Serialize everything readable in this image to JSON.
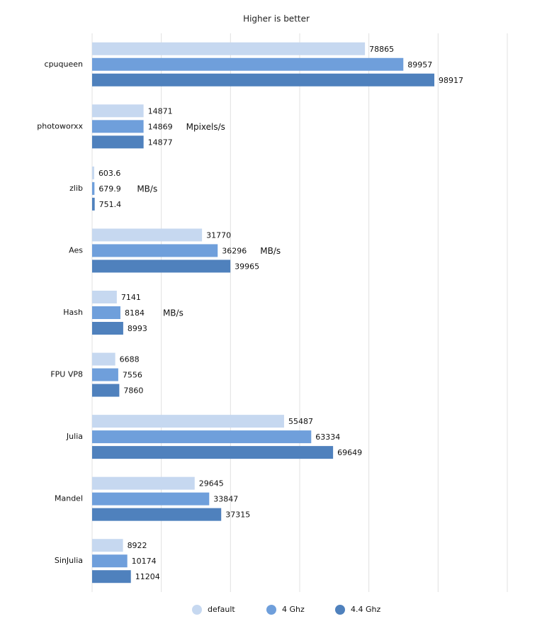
{
  "chart_data": {
    "type": "hbar",
    "title": "Higher is better",
    "categories": [
      "cpuqueen",
      "photoworxx",
      "zlib",
      "Aes",
      "Hash",
      "FPU VP8",
      "Julia",
      "Mandel",
      "SinJulia"
    ],
    "series": [
      {
        "name": "default",
        "color": "#c6d8f0",
        "values": [
          78865,
          14871,
          603.6,
          31770,
          7141,
          6688,
          55487,
          29645,
          8922
        ]
      },
      {
        "name": "4 Ghz",
        "color": "#6f9fdb",
        "values": [
          89957,
          14869,
          679.9,
          36296,
          8184,
          7556,
          63334,
          33847,
          10174
        ]
      },
      {
        "name": "4.4 Ghz",
        "color": "#4f81bd",
        "values": [
          98917,
          14877,
          751.4,
          39965,
          8993,
          7860,
          69649,
          37315,
          11204
        ]
      }
    ],
    "annotations": [
      {
        "category": "photoworxx",
        "text": "Mpixels/s"
      },
      {
        "category": "zlib",
        "text": "MB/s"
      },
      {
        "category": "Aes",
        "text": "MB/s"
      },
      {
        "category": "Hash",
        "text": "MB/s"
      }
    ],
    "xlim": [
      0,
      120000
    ],
    "xticks": [
      0,
      20000,
      40000,
      60000,
      80000,
      100000,
      120000
    ],
    "grid": true,
    "legend": "bottom"
  }
}
